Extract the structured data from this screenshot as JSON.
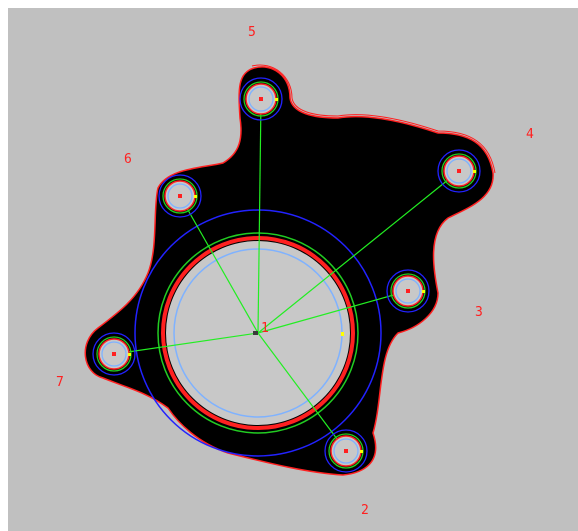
{
  "colors": {
    "background": "#c0c0c0",
    "part_fill": "#000000",
    "part_outline": "#ff2020",
    "center_line": "#22ee22",
    "circle_blue": "#2222ff",
    "circle_light_blue": "#7fb2ff",
    "circle_green": "#22cc22",
    "circle_grey": "#c8c8c8",
    "label_color": "#ff2020",
    "marker_yellow": "#ffff00"
  },
  "center": {
    "label": "1"
  },
  "holes": [
    {
      "label": "2"
    },
    {
      "label": "3"
    },
    {
      "label": "4"
    },
    {
      "label": "5"
    },
    {
      "label": "6"
    },
    {
      "label": "7"
    }
  ]
}
